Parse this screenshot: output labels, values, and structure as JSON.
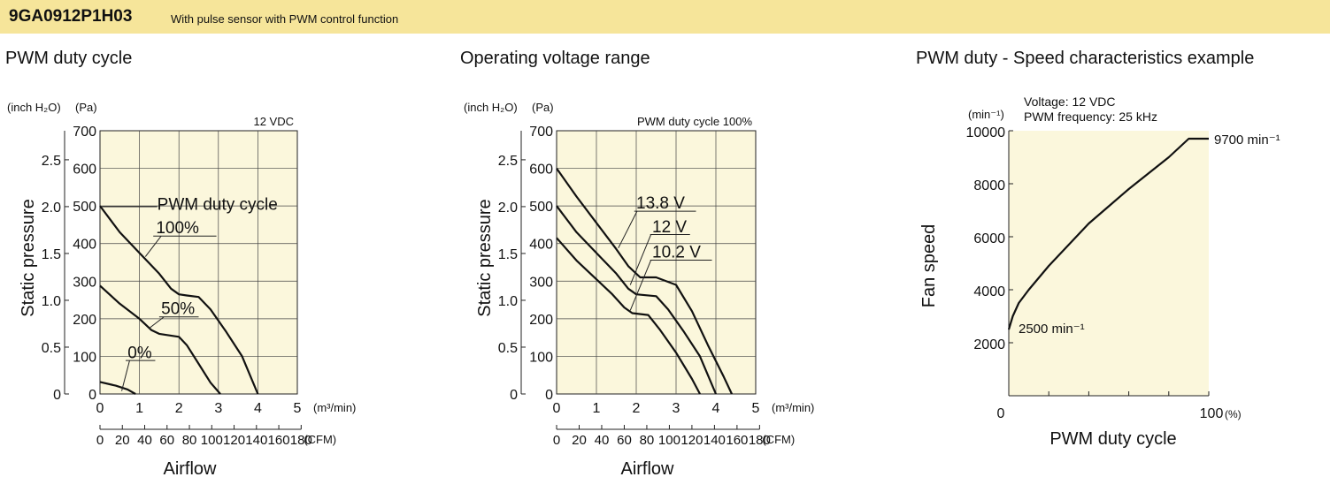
{
  "header": {
    "model": "9GA0912P1H03",
    "description": "With pulse sensor with PWM control function"
  },
  "colors": {
    "header_bg": "#f6e59a",
    "plot_bg": "#fbf7dc",
    "line": "#111111"
  },
  "chart_data": [
    {
      "type": "line",
      "title": "PWM duty cycle",
      "condition": "12 VDC",
      "xlabel": "Airflow",
      "ylabel": "Static pressure",
      "x_unit": "(m³/min)",
      "x2_unit": "(CFM)",
      "y_unit_inch": "(inch H₂O)",
      "y_unit_pa": "(Pa)",
      "xlim": [
        0,
        5
      ],
      "ylim": [
        0,
        700
      ],
      "x_ticks": [
        0,
        1,
        2,
        3,
        4,
        5
      ],
      "x2_ticks": [
        0,
        20,
        40,
        60,
        80,
        100,
        120,
        140,
        160,
        180
      ],
      "y_ticks": [
        0,
        100,
        200,
        300,
        400,
        500,
        600,
        700
      ],
      "y_ticks_inch": [
        0,
        0.5,
        1.0,
        1.5,
        2.0,
        2.5
      ],
      "legend_title": "PWM duty cycle",
      "series": [
        {
          "name": "100%",
          "points": [
            [
              0,
              500
            ],
            [
              0.5,
              430
            ],
            [
              1.0,
              375
            ],
            [
              1.5,
              320
            ],
            [
              1.8,
              280
            ],
            [
              2.0,
              265
            ],
            [
              2.2,
              262
            ],
            [
              2.5,
              258
            ],
            [
              2.8,
              225
            ],
            [
              3.2,
              165
            ],
            [
              3.6,
              100
            ],
            [
              4.0,
              0
            ]
          ]
        },
        {
          "name": "50%",
          "points": [
            [
              0,
              288
            ],
            [
              0.5,
              240
            ],
            [
              1.0,
              200
            ],
            [
              1.3,
              170
            ],
            [
              1.5,
              160
            ],
            [
              2.0,
              152
            ],
            [
              2.2,
              130
            ],
            [
              2.5,
              80
            ],
            [
              2.8,
              30
            ],
            [
              3.05,
              0
            ]
          ]
        },
        {
          "name": "0%",
          "points": [
            [
              0,
              32
            ],
            [
              0.4,
              22
            ],
            [
              0.7,
              12
            ],
            [
              0.9,
              0
            ]
          ]
        }
      ]
    },
    {
      "type": "line",
      "title": "Operating voltage range",
      "condition": "PWM duty cycle 100%",
      "xlabel": "Airflow",
      "ylabel": "Static pressure",
      "x_unit": "(m³/min)",
      "x2_unit": "(CFM)",
      "y_unit_inch": "(inch H₂O)",
      "y_unit_pa": "(Pa)",
      "xlim": [
        0,
        5
      ],
      "ylim": [
        0,
        700
      ],
      "x_ticks": [
        0,
        1,
        2,
        3,
        4,
        5
      ],
      "x2_ticks": [
        0,
        20,
        40,
        60,
        80,
        100,
        120,
        140,
        160,
        180
      ],
      "y_ticks": [
        0,
        100,
        200,
        300,
        400,
        500,
        600,
        700
      ],
      "y_ticks_inch": [
        0,
        0.5,
        1.0,
        1.5,
        2.0,
        2.5
      ],
      "series": [
        {
          "name": "13.8 V",
          "points": [
            [
              0,
              600
            ],
            [
              0.5,
              525
            ],
            [
              1.0,
              455
            ],
            [
              1.5,
              385
            ],
            [
              1.8,
              340
            ],
            [
              2.1,
              310
            ],
            [
              2.5,
              310
            ],
            [
              3.0,
              290
            ],
            [
              3.4,
              220
            ],
            [
              3.8,
              130
            ],
            [
              4.2,
              45
            ],
            [
              4.4,
              0
            ]
          ]
        },
        {
          "name": "12 V",
          "points": [
            [
              0,
              500
            ],
            [
              0.5,
              430
            ],
            [
              1.0,
              375
            ],
            [
              1.5,
              320
            ],
            [
              1.8,
              280
            ],
            [
              2.0,
              265
            ],
            [
              2.5,
              260
            ],
            [
              2.8,
              225
            ],
            [
              3.2,
              165
            ],
            [
              3.6,
              100
            ],
            [
              4.0,
              0
            ]
          ]
        },
        {
          "name": "10.2 V",
          "points": [
            [
              0,
              415
            ],
            [
              0.5,
              355
            ],
            [
              1.0,
              305
            ],
            [
              1.4,
              265
            ],
            [
              1.7,
              230
            ],
            [
              1.9,
              215
            ],
            [
              2.3,
              210
            ],
            [
              2.6,
              170
            ],
            [
              3.0,
              110
            ],
            [
              3.4,
              40
            ],
            [
              3.6,
              0
            ]
          ]
        }
      ]
    },
    {
      "type": "line",
      "title": "PWM duty - Speed characteristics example",
      "notes": [
        "Voltage: 12 VDC",
        "PWM frequency: 25 kHz"
      ],
      "xlabel": "PWM duty cycle",
      "ylabel": "Fan speed",
      "x_unit": "(%)",
      "y_unit": "(min⁻¹)",
      "xlim": [
        0,
        100
      ],
      "ylim": [
        0,
        10000
      ],
      "x_tick_labels": [
        "0",
        "100"
      ],
      "y_ticks": [
        2000,
        4000,
        6000,
        8000,
        10000
      ],
      "annotations": [
        "9700 min⁻¹",
        "2500 min⁻¹"
      ],
      "series": [
        {
          "points": [
            [
              0,
              2500
            ],
            [
              2,
              3000
            ],
            [
              5,
              3500
            ],
            [
              10,
              4000
            ],
            [
              20,
              4900
            ],
            [
              30,
              5700
            ],
            [
              40,
              6500
            ],
            [
              50,
              7150
            ],
            [
              60,
              7800
            ],
            [
              70,
              8400
            ],
            [
              80,
              9000
            ],
            [
              90,
              9700
            ],
            [
              100,
              9700
            ]
          ]
        }
      ]
    }
  ]
}
